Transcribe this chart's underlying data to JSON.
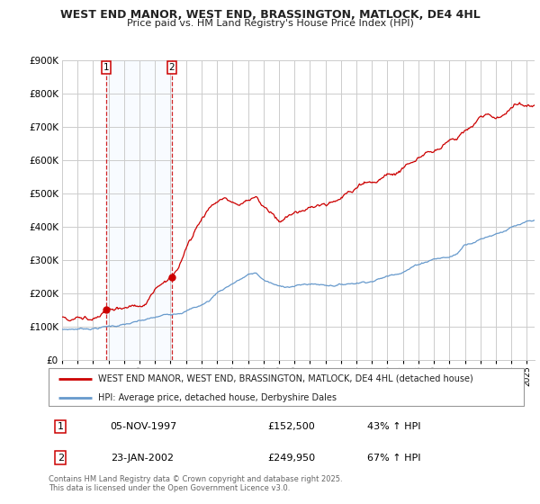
{
  "title": "WEST END MANOR, WEST END, BRASSINGTON, MATLOCK, DE4 4HL",
  "subtitle": "Price paid vs. HM Land Registry's House Price Index (HPI)",
  "legend_label_red": "WEST END MANOR, WEST END, BRASSINGTON, MATLOCK, DE4 4HL (detached house)",
  "legend_label_blue": "HPI: Average price, detached house, Derbyshire Dales",
  "annotation1_date": "05-NOV-1997",
  "annotation1_price": "£152,500",
  "annotation1_hpi": "43% ↑ HPI",
  "annotation2_date": "23-JAN-2002",
  "annotation2_price": "£249,950",
  "annotation2_hpi": "67% ↑ HPI",
  "footer": "Contains HM Land Registry data © Crown copyright and database right 2025.\nThis data is licensed under the Open Government Licence v3.0.",
  "color_red": "#cc0000",
  "color_blue": "#6699cc",
  "color_grid": "#cccccc",
  "color_bg": "#ffffff",
  "color_shading": "#ddeeff",
  "purchase1_year": 1997.85,
  "purchase2_year": 2002.07,
  "purchase1_value": 152500,
  "purchase2_value": 249950
}
